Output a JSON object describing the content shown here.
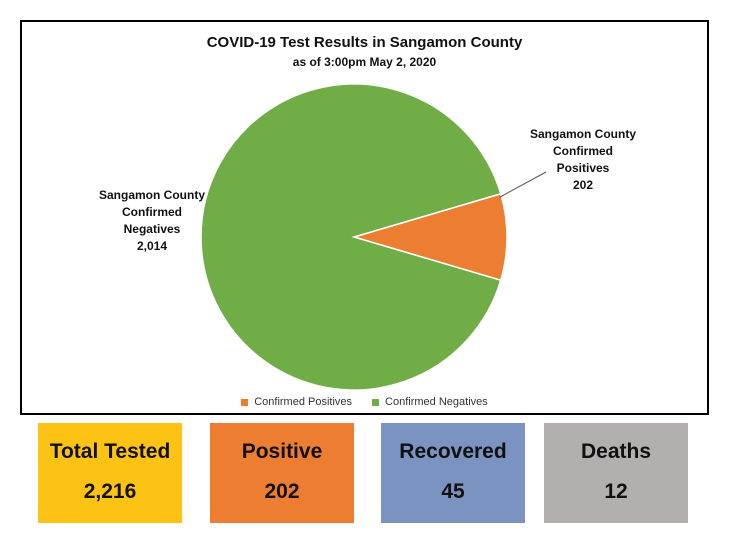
{
  "chart_data": {
    "type": "pie",
    "title": "COVID-19 Test Results in Sangamon County",
    "subtitle": "as of 3:00pm May 2, 2020",
    "slices": [
      {
        "name": "Confirmed Positives",
        "value": 202,
        "color": "#ed7d31",
        "label_lines": [
          "Sangamon County",
          "Confirmed",
          "Positives",
          "202"
        ]
      },
      {
        "name": "Confirmed Negatives",
        "value": 2014,
        "color": "#70ad47",
        "label_lines": [
          "Sangamon County",
          "Confirmed",
          "Negatives",
          "2,014"
        ]
      }
    ],
    "legend": {
      "position": "bottom",
      "items": [
        "Confirmed Positives",
        "Confirmed Negatives"
      ]
    }
  },
  "stats": [
    {
      "label": "Total Tested",
      "value": "2,216",
      "color": "#fcc214"
    },
    {
      "label": "Positive",
      "value": "202",
      "color": "#ed7d31"
    },
    {
      "label": "Recovered",
      "value": "45",
      "color": "#7a93c0"
    },
    {
      "label": "Deaths",
      "value": "12",
      "color": "#b3afaf"
    }
  ]
}
